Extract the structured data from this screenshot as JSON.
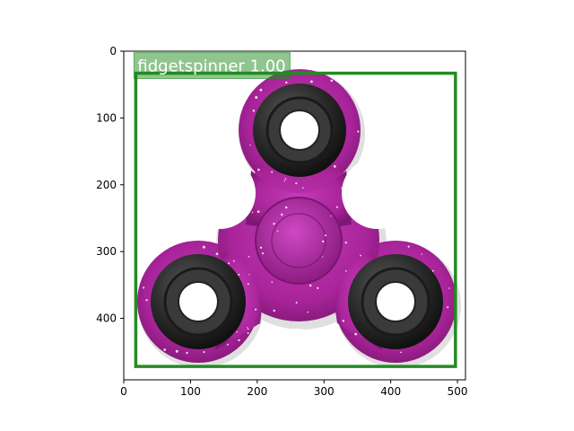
{
  "image": {
    "subject": "fidget spinner",
    "body_color": "#b0279f",
    "bearing_color": "#2a2a2a"
  },
  "axes": {
    "x_ticks": [
      0,
      100,
      200,
      300,
      400,
      500
    ],
    "y_ticks": [
      0,
      100,
      200,
      300,
      400
    ],
    "x_range": [
      0,
      512
    ],
    "y_range": [
      0,
      492
    ]
  },
  "detections": [
    {
      "label": "fidgetspinner 1.00",
      "class": "fidgetspinner",
      "score": 1.0,
      "box": {
        "x1": 18,
        "y1": 33,
        "x2": 497,
        "y2": 472
      },
      "color": "#228b22"
    }
  ]
}
